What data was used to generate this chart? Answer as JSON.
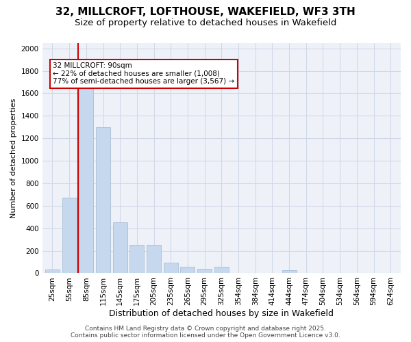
{
  "title": "32, MILLCROFT, LOFTHOUSE, WAKEFIELD, WF3 3TH",
  "subtitle": "Size of property relative to detached houses in Wakefield",
  "xlabel": "Distribution of detached houses by size in Wakefield",
  "ylabel": "Number of detached properties",
  "categories": [
    "25sqm",
    "55sqm",
    "85sqm",
    "115sqm",
    "145sqm",
    "175sqm",
    "205sqm",
    "235sqm",
    "265sqm",
    "295sqm",
    "325sqm",
    "354sqm",
    "384sqm",
    "414sqm",
    "444sqm",
    "474sqm",
    "504sqm",
    "534sqm",
    "564sqm",
    "594sqm",
    "624sqm"
  ],
  "values": [
    35,
    670,
    1650,
    1300,
    450,
    255,
    255,
    95,
    55,
    40,
    55,
    0,
    0,
    0,
    30,
    0,
    0,
    0,
    0,
    0,
    0
  ],
  "bar_color": "#c5d8ed",
  "bar_edge_color": "#a0b8d0",
  "vline_color": "#cc0000",
  "vline_x_index": 2,
  "annotation_text": "32 MILLCROFT: 90sqm\n← 22% of detached houses are smaller (1,008)\n77% of semi-detached houses are larger (3,567) →",
  "annotation_box_color": "#cc0000",
  "annotation_facecolor": "white",
  "ylim": [
    0,
    2050
  ],
  "yticks": [
    0,
    200,
    400,
    600,
    800,
    1000,
    1200,
    1400,
    1600,
    1800,
    2000
  ],
  "grid_color": "#d0d8e8",
  "bg_color": "#eef2f8",
  "footer": "Contains HM Land Registry data © Crown copyright and database right 2025.\nContains public sector information licensed under the Open Government Licence v3.0.",
  "title_fontsize": 11,
  "subtitle_fontsize": 9.5,
  "xlabel_fontsize": 9,
  "ylabel_fontsize": 8,
  "tick_fontsize": 7.5,
  "footer_fontsize": 6.5,
  "annot_fontsize": 7.5
}
